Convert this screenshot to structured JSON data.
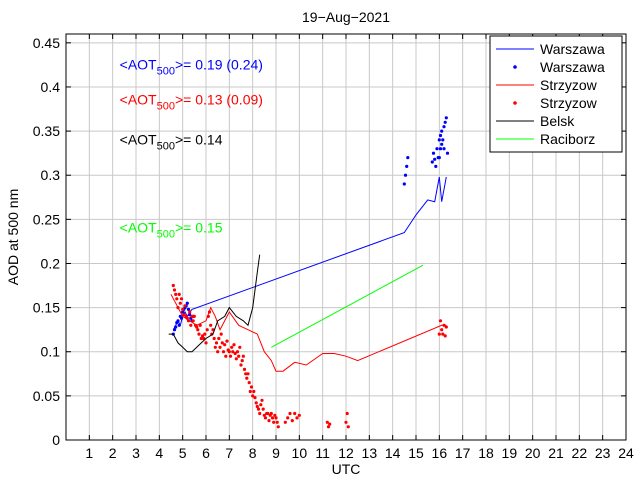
{
  "chart_data": {
    "type": "line",
    "title": "19−Aug−2021",
    "xlabel": "UTC",
    "ylabel": "AOD at 500 nm",
    "xlim": [
      0,
      24
    ],
    "ylim": [
      0,
      0.46
    ],
    "xticks": [
      1,
      2,
      3,
      4,
      5,
      6,
      7,
      8,
      9,
      10,
      11,
      12,
      13,
      14,
      15,
      16,
      17,
      18,
      19,
      20,
      21,
      22,
      23,
      24
    ],
    "yticks": [
      0,
      0.05,
      0.1,
      0.15,
      0.2,
      0.25,
      0.3,
      0.35,
      0.4,
      0.45
    ],
    "ytick_labels": [
      "0",
      "0.05",
      "0.1",
      "0.15",
      "0.2",
      "0.25",
      "0.3",
      "0.35",
      "0.4",
      "0.45"
    ],
    "grid": true,
    "legend_position": "top-right",
    "legend": [
      {
        "label": "Warszawa",
        "kind": "line",
        "color": "#0000ff"
      },
      {
        "label": "Warszawa",
        "kind": "marker",
        "color": "#0000ff"
      },
      {
        "label": "Strzyzow",
        "kind": "line",
        "color": "#ff0000"
      },
      {
        "label": "Strzyzow",
        "kind": "marker",
        "color": "#ff0000"
      },
      {
        "label": "Belsk",
        "kind": "line",
        "color": "#000000"
      },
      {
        "label": "Raciborz",
        "kind": "line",
        "color": "#00ff00"
      }
    ],
    "annotations": [
      {
        "color": "#0000ff",
        "x": 2.3,
        "y": 0.42,
        "pre": "<AOT",
        "sub": "500",
        "post": ">= 0.19 (0.24)"
      },
      {
        "color": "#ff0000",
        "x": 2.3,
        "y": 0.38,
        "pre": "<AOT",
        "sub": "500",
        "post": ">= 0.13 (0.09)"
      },
      {
        "color": "#000000",
        "x": 2.3,
        "y": 0.335,
        "pre": "<AOT",
        "sub": "500",
        "post": ">= 0.14"
      },
      {
        "color": "#00ff00",
        "x": 2.3,
        "y": 0.235,
        "pre": "<AOT",
        "sub": "500",
        "post": ">= 0.15"
      }
    ],
    "series": [
      {
        "kind": "line",
        "color": "#0000ff",
        "x": [
          4.6,
          4.7,
          4.8,
          4.9,
          5.0,
          5.1,
          5.2,
          5.3,
          5.4,
          14.5,
          15.0,
          15.5,
          15.8,
          16.0,
          16.1,
          16.3
        ],
        "y": [
          0.125,
          0.13,
          0.135,
          0.13,
          0.14,
          0.145,
          0.14,
          0.145,
          0.148,
          0.235,
          0.255,
          0.272,
          0.27,
          0.298,
          0.27,
          0.298
        ]
      },
      {
        "kind": "marker",
        "color": "#0000ff",
        "x": [
          4.6,
          4.65,
          4.7,
          4.75,
          4.8,
          4.85,
          4.9,
          4.95,
          5.0,
          5.05,
          5.1,
          5.15,
          5.2,
          5.25,
          5.3,
          5.35,
          5.4,
          5.45,
          14.5,
          14.55,
          14.6,
          14.65,
          15.7,
          15.75,
          15.8,
          15.85,
          15.9,
          15.95,
          16.0,
          16.0,
          16.05,
          16.05,
          16.1,
          16.1,
          16.15,
          16.2,
          16.2,
          16.25,
          16.3,
          16.35
        ],
        "y": [
          0.12,
          0.125,
          0.128,
          0.133,
          0.135,
          0.13,
          0.14,
          0.138,
          0.145,
          0.148,
          0.15,
          0.152,
          0.155,
          0.148,
          0.142,
          0.138,
          0.135,
          0.14,
          0.29,
          0.3,
          0.31,
          0.32,
          0.315,
          0.325,
          0.318,
          0.31,
          0.33,
          0.32,
          0.32,
          0.34,
          0.33,
          0.345,
          0.335,
          0.35,
          0.34,
          0.355,
          0.33,
          0.36,
          0.365,
          0.325
        ]
      },
      {
        "kind": "line",
        "color": "#ff0000",
        "x": [
          4.5,
          4.7,
          5.0,
          5.3,
          5.6,
          6.0,
          6.2,
          6.4,
          6.6,
          7.0,
          7.4,
          7.8,
          8.2,
          8.5,
          8.8,
          9.0,
          9.3,
          9.8,
          10.3,
          11.0,
          11.5,
          12.0,
          12.5,
          16.1,
          16.3
        ],
        "y": [
          0.165,
          0.155,
          0.14,
          0.135,
          0.13,
          0.135,
          0.15,
          0.14,
          0.125,
          0.145,
          0.13,
          0.125,
          0.12,
          0.1,
          0.09,
          0.078,
          0.078,
          0.088,
          0.085,
          0.098,
          0.098,
          0.095,
          0.09,
          0.13,
          0.13
        ]
      },
      {
        "kind": "marker",
        "color": "#ff0000",
        "x": [
          4.6,
          4.65,
          4.7,
          4.75,
          4.8,
          4.85,
          4.9,
          4.95,
          5.0,
          5.05,
          5.1,
          5.15,
          5.2,
          5.25,
          5.3,
          5.35,
          5.4,
          5.45,
          5.5,
          5.55,
          5.6,
          5.65,
          5.7,
          5.75,
          5.8,
          5.85,
          5.9,
          5.95,
          6.0,
          6.05,
          6.1,
          6.15,
          6.2,
          6.25,
          6.3,
          6.35,
          6.4,
          6.45,
          6.5,
          6.55,
          6.6,
          6.65,
          6.7,
          6.75,
          6.8,
          6.85,
          6.9,
          6.95,
          7.0,
          7.05,
          7.1,
          7.15,
          7.2,
          7.25,
          7.3,
          7.35,
          7.4,
          7.45,
          7.5,
          7.55,
          7.6,
          7.65,
          7.7,
          7.75,
          7.8,
          7.85,
          7.9,
          7.95,
          8.0,
          8.05,
          8.1,
          8.15,
          8.2,
          8.25,
          8.3,
          8.35,
          8.4,
          8.45,
          8.5,
          8.55,
          8.6,
          8.65,
          8.7,
          8.75,
          8.8,
          8.85,
          8.9,
          8.95,
          9.0,
          9.05,
          9.1,
          9.4,
          9.5,
          9.6,
          9.7,
          9.8,
          9.9,
          10.0,
          11.2,
          11.25,
          11.3,
          12.0,
          12.05,
          12.1,
          16.0,
          16.05,
          16.1,
          16.15,
          16.2,
          16.25,
          16.3
        ],
        "y": [
          0.175,
          0.17,
          0.165,
          0.16,
          0.15,
          0.165,
          0.155,
          0.16,
          0.148,
          0.142,
          0.152,
          0.14,
          0.138,
          0.135,
          0.145,
          0.13,
          0.14,
          0.135,
          0.14,
          0.13,
          0.128,
          0.125,
          0.12,
          0.13,
          0.115,
          0.118,
          0.115,
          0.12,
          0.11,
          0.125,
          0.14,
          0.145,
          0.13,
          0.12,
          0.125,
          0.115,
          0.105,
          0.11,
          0.1,
          0.115,
          0.105,
          0.12,
          0.11,
          0.1,
          0.108,
          0.095,
          0.112,
          0.102,
          0.1,
          0.095,
          0.105,
          0.1,
          0.108,
          0.098,
          0.092,
          0.1,
          0.095,
          0.105,
          0.085,
          0.09,
          0.095,
          0.08,
          0.075,
          0.07,
          0.075,
          0.065,
          0.055,
          0.06,
          0.05,
          0.055,
          0.048,
          0.042,
          0.038,
          0.035,
          0.03,
          0.04,
          0.045,
          0.035,
          0.028,
          0.025,
          0.03,
          0.03,
          0.022,
          0.028,
          0.03,
          0.025,
          0.02,
          0.028,
          0.025,
          0.02,
          0.015,
          0.02,
          0.025,
          0.03,
          0.022,
          0.03,
          0.025,
          0.028,
          0.02,
          0.015,
          0.018,
          0.02,
          0.03,
          0.015,
          0.12,
          0.135,
          0.125,
          0.12,
          0.13,
          0.118,
          0.128
        ]
      },
      {
        "kind": "line",
        "color": "#000000",
        "x": [
          4.4,
          4.6,
          4.8,
          5.0,
          5.2,
          5.4,
          5.6,
          5.8,
          6.0,
          6.3,
          6.5,
          6.8,
          7.0,
          7.3,
          7.6,
          7.8,
          8.0,
          8.1,
          8.2,
          8.3
        ],
        "y": [
          0.12,
          0.12,
          0.11,
          0.105,
          0.1,
          0.1,
          0.105,
          0.11,
          0.115,
          0.12,
          0.135,
          0.14,
          0.15,
          0.14,
          0.135,
          0.13,
          0.15,
          0.17,
          0.19,
          0.21
        ]
      },
      {
        "kind": "line",
        "color": "#00ff00",
        "x": [
          8.8,
          15.3
        ],
        "y": [
          0.105,
          0.198
        ]
      }
    ]
  }
}
